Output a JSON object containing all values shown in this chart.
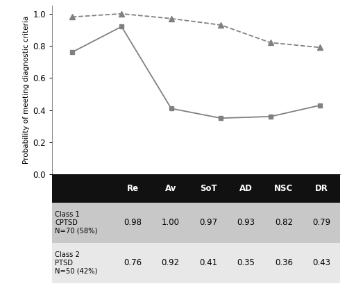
{
  "categories": [
    "Re",
    "Av",
    "SoT",
    "AD",
    "NSC",
    "DR"
  ],
  "class1_values": [
    0.98,
    1.0,
    0.97,
    0.93,
    0.82,
    0.79
  ],
  "class2_values": [
    0.76,
    0.92,
    0.41,
    0.35,
    0.36,
    0.43
  ],
  "ylabel": "Probability of meeting diagnostic criteria",
  "ylim": [
    0.0,
    1.05
  ],
  "yticks": [
    0.0,
    0.2,
    0.4,
    0.6,
    0.8,
    1.0
  ],
  "line_color": "#808080",
  "bg_color": "#ffffff",
  "table_header_bg": "#111111",
  "table_header_fg": "#ffffff",
  "table_row1_bg": "#c8c8c8",
  "table_row2_bg": "#e8e8e8",
  "table_cols": [
    "",
    "Re",
    "Av",
    "SoT",
    "AD",
    "NSC",
    "DR"
  ],
  "table_row1": [
    "Class 1\nCPTSD\nN=70 (58%)",
    "0.98",
    "1.00",
    "0.97",
    "0.93",
    "0.82",
    "0.79"
  ],
  "table_row2": [
    "Class 2\nPTSD\nN=50 (42%)",
    "0.76",
    "0.92",
    "0.41",
    "0.35",
    "0.36",
    "0.43"
  ]
}
